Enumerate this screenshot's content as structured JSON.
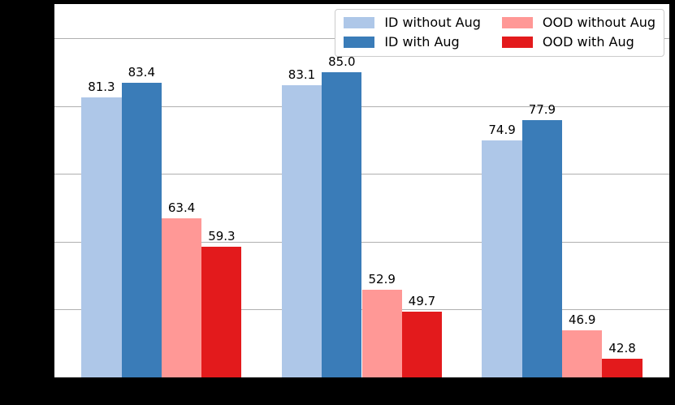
{
  "figure": {
    "background": "#000000",
    "plot_background": "#ffffff",
    "spine_color": "#000000"
  },
  "chart_data": {
    "type": "bar",
    "title": "",
    "xlabel": "",
    "ylabel": "",
    "categories": [
      "",
      "",
      ""
    ],
    "series": [
      {
        "name": "ID without Aug",
        "color": "#aec7e8",
        "values": [
          81.3,
          83.1,
          74.9
        ],
        "labels": [
          "81.3",
          "83.1",
          "74.9"
        ]
      },
      {
        "name": "ID with Aug",
        "color": "#3a7cb8",
        "values": [
          83.4,
          85.0,
          77.9
        ],
        "labels": [
          "83.4",
          "85.0",
          "77.9"
        ]
      },
      {
        "name": "OOD without Aug",
        "color": "#ff9896",
        "values": [
          63.4,
          52.9,
          46.9
        ],
        "labels": [
          "63.4",
          "52.9",
          "46.9"
        ]
      },
      {
        "name": "OOD with Aug",
        "color": "#e31a1c",
        "values": [
          59.3,
          49.7,
          42.8
        ],
        "labels": [
          "59.3",
          "49.7",
          "42.8"
        ]
      }
    ],
    "ylim": [
      40,
      95
    ],
    "xlim": [
      -0.535,
      2.535
    ],
    "gridlines": [
      50,
      60,
      70,
      80,
      90
    ],
    "grid_color": "#b0b0b0",
    "grid_on": true,
    "bar_width_units": 0.2,
    "group_width_units": 0.8,
    "legend_position": "upper-right",
    "legend_columns": 2
  }
}
